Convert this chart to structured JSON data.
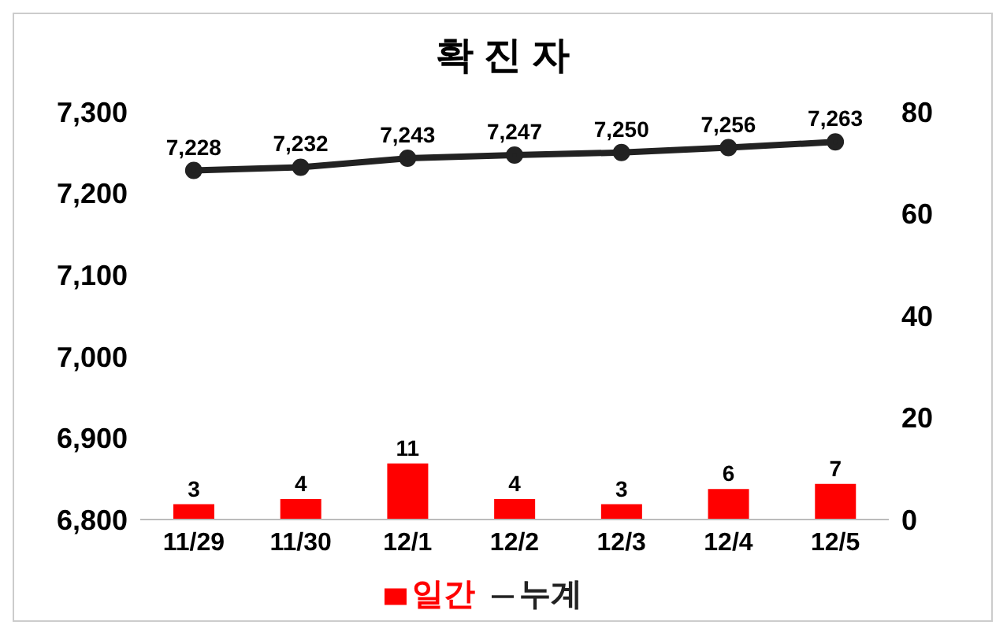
{
  "chart_data": {
    "type": "bar",
    "title": "확 진 자",
    "categories": [
      "11/29",
      "11/30",
      "12/1",
      "12/2",
      "12/3",
      "12/4",
      "12/5"
    ],
    "series": [
      {
        "name": "일간",
        "axis": "y2",
        "color": "#ff0000",
        "values": [
          3,
          4,
          11,
          4,
          3,
          6,
          7
        ],
        "value_labels": [
          "3",
          "4",
          "11",
          "4",
          "3",
          "6",
          "7"
        ]
      },
      {
        "name": "누계",
        "type": "line",
        "axis": "y",
        "color": "#222222",
        "values": [
          7228,
          7232,
          7243,
          7247,
          7250,
          7256,
          7263
        ],
        "value_labels": [
          "7,228",
          "7,232",
          "7,243",
          "7,247",
          "7,250",
          "7,256",
          "7,263"
        ]
      }
    ],
    "ylim": [
      6800,
      7300
    ],
    "yticks": [
      {
        "value": 6800,
        "label": "6,800"
      },
      {
        "value": 6900,
        "label": "6,900"
      },
      {
        "value": 7000,
        "label": "7,000"
      },
      {
        "value": 7100,
        "label": "7,100"
      },
      {
        "value": 7200,
        "label": "7,200"
      },
      {
        "value": 7300,
        "label": "7,300"
      }
    ],
    "y2lim": [
      0,
      80
    ],
    "y2ticks": [
      0,
      20,
      40,
      60,
      80
    ],
    "legend": "bottom",
    "marker": "circle"
  }
}
